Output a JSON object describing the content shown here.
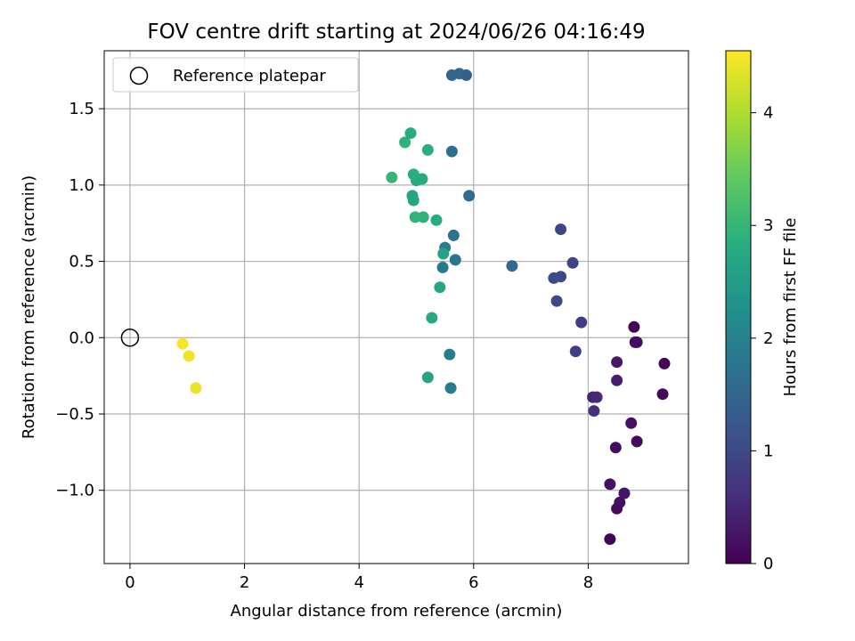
{
  "chart_data": {
    "type": "scatter",
    "title": "FOV centre drift starting at 2024/06/26 04:16:49",
    "xlabel": "Angular distance from reference (arcmin)",
    "ylabel": "Rotation from reference (arcmin)",
    "xlim": [
      -0.45,
      9.75
    ],
    "ylim": [
      -1.48,
      1.88
    ],
    "xticks": [
      0,
      2,
      4,
      6,
      8
    ],
    "yticks": [
      -1.0,
      -0.5,
      0.0,
      0.5,
      1.0,
      1.5
    ],
    "xtick_labels": [
      "0",
      "2",
      "4",
      "6",
      "8"
    ],
    "ytick_labels": [
      "−1.0",
      "−0.5",
      "0.0",
      "0.5",
      "1.0",
      "1.5"
    ],
    "grid": true,
    "legend": {
      "placement": "top-left",
      "label": "Reference platepar"
    },
    "reference_point": {
      "x": 0,
      "y": 0
    },
    "colorbar": {
      "label": "Hours from first FF file",
      "min": 0,
      "max": 4.55,
      "ticks": [
        0,
        1,
        2,
        3,
        4
      ],
      "tick_labels": [
        "0",
        "1",
        "2",
        "3",
        "4"
      ],
      "colormap": "viridis"
    },
    "points": [
      {
        "x": 8.38,
        "y": -1.32,
        "h": 0.05
      },
      {
        "x": 8.5,
        "y": -1.12,
        "h": 0.1
      },
      {
        "x": 8.55,
        "y": -1.08,
        "h": 0.15
      },
      {
        "x": 8.38,
        "y": -0.96,
        "h": 0.2
      },
      {
        "x": 8.63,
        "y": -1.02,
        "h": 0.25
      },
      {
        "x": 8.85,
        "y": -0.68,
        "h": 0.1
      },
      {
        "x": 8.48,
        "y": -0.72,
        "h": 0.15
      },
      {
        "x": 8.75,
        "y": -0.56,
        "h": 0.2
      },
      {
        "x": 9.3,
        "y": -0.37,
        "h": 0.1
      },
      {
        "x": 9.33,
        "y": -0.17,
        "h": 0.05
      },
      {
        "x": 8.85,
        "y": -0.03,
        "h": 0.1
      },
      {
        "x": 8.82,
        "y": -0.03,
        "h": 0.15
      },
      {
        "x": 8.8,
        "y": 0.07,
        "h": 0.05
      },
      {
        "x": 8.5,
        "y": -0.16,
        "h": 0.3
      },
      {
        "x": 8.5,
        "y": -0.28,
        "h": 0.35
      },
      {
        "x": 8.08,
        "y": -0.39,
        "h": 0.45
      },
      {
        "x": 8.15,
        "y": -0.39,
        "h": 0.5
      },
      {
        "x": 8.1,
        "y": -0.48,
        "h": 0.6
      },
      {
        "x": 7.78,
        "y": -0.09,
        "h": 0.85
      },
      {
        "x": 7.88,
        "y": 0.1,
        "h": 0.8
      },
      {
        "x": 7.73,
        "y": 0.49,
        "h": 0.9
      },
      {
        "x": 7.52,
        "y": 0.71,
        "h": 0.95
      },
      {
        "x": 7.52,
        "y": 0.4,
        "h": 1.0
      },
      {
        "x": 7.4,
        "y": 0.39,
        "h": 1.05
      },
      {
        "x": 7.45,
        "y": 0.24,
        "h": 1.0
      },
      {
        "x": 6.67,
        "y": 0.47,
        "h": 1.55
      },
      {
        "x": 5.92,
        "y": 0.93,
        "h": 1.6
      },
      {
        "x": 5.62,
        "y": 1.22,
        "h": 1.65
      },
      {
        "x": 5.62,
        "y": 1.72,
        "h": 1.45
      },
      {
        "x": 5.75,
        "y": 1.73,
        "h": 1.5
      },
      {
        "x": 5.87,
        "y": 1.72,
        "h": 1.4
      },
      {
        "x": 5.65,
        "y": 0.67,
        "h": 1.7
      },
      {
        "x": 5.68,
        "y": 0.51,
        "h": 1.75
      },
      {
        "x": 5.5,
        "y": 0.59,
        "h": 1.95
      },
      {
        "x": 5.46,
        "y": 0.46,
        "h": 1.85
      },
      {
        "x": 5.47,
        "y": 0.55,
        "h": 2.6
      },
      {
        "x": 5.41,
        "y": 0.33,
        "h": 2.7
      },
      {
        "x": 5.27,
        "y": 0.13,
        "h": 2.75
      },
      {
        "x": 5.58,
        "y": -0.11,
        "h": 1.9
      },
      {
        "x": 5.6,
        "y": -0.33,
        "h": 1.9
      },
      {
        "x": 5.2,
        "y": -0.26,
        "h": 2.65
      },
      {
        "x": 5.35,
        "y": 0.77,
        "h": 2.8
      },
      {
        "x": 5.12,
        "y": 0.79,
        "h": 2.9
      },
      {
        "x": 4.98,
        "y": 0.79,
        "h": 2.95
      },
      {
        "x": 4.95,
        "y": 0.9,
        "h": 2.7
      },
      {
        "x": 4.93,
        "y": 0.93,
        "h": 2.65
      },
      {
        "x": 5.0,
        "y": 1.03,
        "h": 2.75
      },
      {
        "x": 5.1,
        "y": 1.04,
        "h": 2.8
      },
      {
        "x": 4.95,
        "y": 1.07,
        "h": 2.85
      },
      {
        "x": 4.57,
        "y": 1.05,
        "h": 3.0
      },
      {
        "x": 4.8,
        "y": 1.28,
        "h": 2.9
      },
      {
        "x": 4.9,
        "y": 1.34,
        "h": 2.8
      },
      {
        "x": 5.2,
        "y": 1.23,
        "h": 2.85
      },
      {
        "x": 0.92,
        "y": -0.04,
        "h": 4.5
      },
      {
        "x": 1.03,
        "y": -0.12,
        "h": 4.45
      },
      {
        "x": 1.15,
        "y": -0.33,
        "h": 4.4
      }
    ]
  }
}
